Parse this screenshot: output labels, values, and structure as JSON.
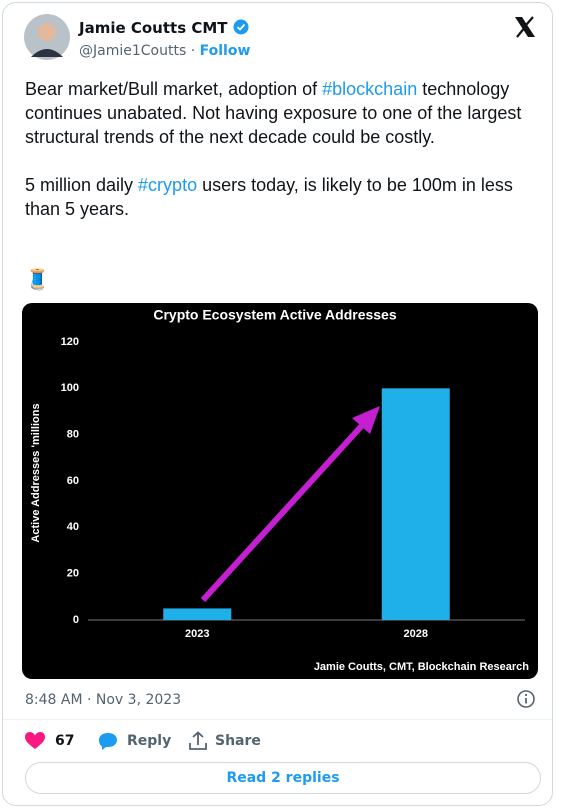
{
  "tweet": {
    "author": "Jamie Coutts CMT",
    "handle": "@Jamie1Coutts",
    "separator": "·",
    "follow": "Follow",
    "paragraphs": [
      {
        "before": "Bear market/Bull market, adoption of ",
        "hashtag": "#blockchain",
        "after": " technology continues unabated. Not having exposure to one of the largest structural trends of the next decade could be costly."
      },
      {
        "before": "5 million daily ",
        "hashtag": "#crypto",
        "after": " users today, is likely to be 100m in less than 5 years."
      }
    ],
    "emoji": "🧵",
    "timestamp": "8:48 AM · Nov 3, 2023",
    "likes": 67,
    "reply": "Reply",
    "share": "Share",
    "read_replies": "Read 2 replies"
  },
  "chart_data": {
    "type": "bar",
    "title": "Crypto Ecosystem Active Addresses",
    "y_label": "Active Addresses 'millions",
    "categories": [
      "2023",
      "2028"
    ],
    "values": [
      5,
      100
    ],
    "color": "#1fb0ea",
    "ylim": [
      0,
      120
    ],
    "yticks": [
      0,
      20,
      40,
      60,
      80,
      100,
      120
    ],
    "credit": "Jamie Coutts, CMT, Blockchain Research"
  }
}
